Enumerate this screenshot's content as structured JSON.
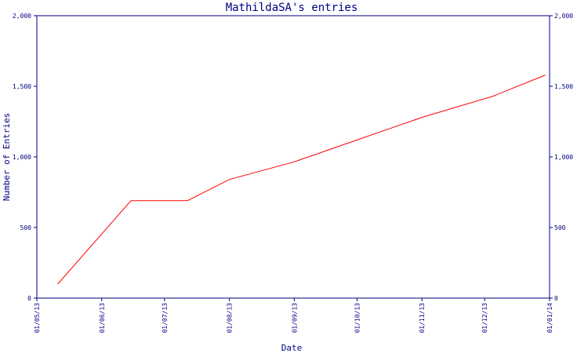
{
  "chart_data": {
    "type": "line",
    "title": "MathildaSA's entries",
    "xlabel": "Date",
    "ylabel": "Number of Entries",
    "x_ticks": [
      "01/05/13",
      "01/06/13",
      "01/07/13",
      "01/08/13",
      "01/09/13",
      "01/10/13",
      "01/11/13",
      "01/12/13",
      "01/01/14"
    ],
    "y_ticks": [
      "0",
      "500",
      "1,000",
      "1,500",
      "2,000"
    ],
    "ylim": [
      0,
      2000
    ],
    "xlim": [
      "2013-05-01",
      "2014-01-01"
    ],
    "series": [
      {
        "color": "#ff0000",
        "points": [
          {
            "x": "2013-05-11",
            "y": 100
          },
          {
            "x": "2013-06-15",
            "y": 690
          },
          {
            "x": "2013-07-12",
            "y": 690
          },
          {
            "x": "2013-08-01",
            "y": 840
          },
          {
            "x": "2013-09-01",
            "y": 965
          },
          {
            "x": "2013-10-01",
            "y": 1120
          },
          {
            "x": "2013-11-01",
            "y": 1280
          },
          {
            "x": "2013-12-05",
            "y": 1430
          },
          {
            "x": "2013-12-30",
            "y": 1580
          }
        ]
      }
    ],
    "grid": false,
    "axis_color": "#000080"
  }
}
